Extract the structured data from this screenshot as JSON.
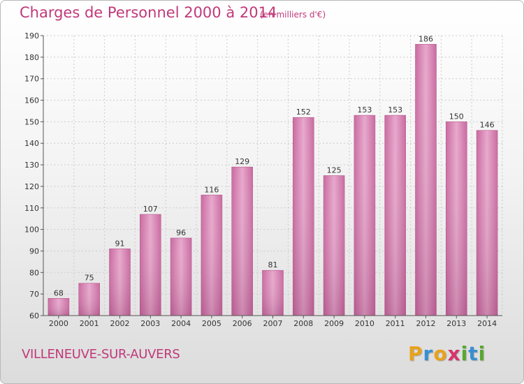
{
  "chart_data": {
    "type": "bar",
    "title": "Charges de Personnel 2000 à 2014",
    "subtitle": "(en milliers d'€)",
    "categories": [
      "2000",
      "2001",
      "2002",
      "2003",
      "2004",
      "2005",
      "2006",
      "2007",
      "2008",
      "2009",
      "2010",
      "2011",
      "2012",
      "2013",
      "2014"
    ],
    "values": [
      68,
      75,
      91,
      107,
      96,
      116,
      129,
      81,
      152,
      125,
      153,
      153,
      186,
      150,
      146
    ],
    "ylim": [
      60,
      190
    ],
    "yticks": [
      60,
      70,
      80,
      90,
      100,
      110,
      120,
      130,
      140,
      150,
      160,
      170,
      180,
      190
    ],
    "grid": true,
    "bar_color": "#d988b4"
  },
  "footer": {
    "commune": "VILLENEUVE-SUR-AUVERS",
    "logo": [
      "P",
      "r",
      "o",
      "x",
      "i",
      "t",
      "i"
    ],
    "logo_colors": [
      "#e8a21c",
      "#3a8fd1",
      "#e8a21c",
      "#d6336c",
      "#58a832",
      "#3a8fd1",
      "#58a832"
    ]
  }
}
